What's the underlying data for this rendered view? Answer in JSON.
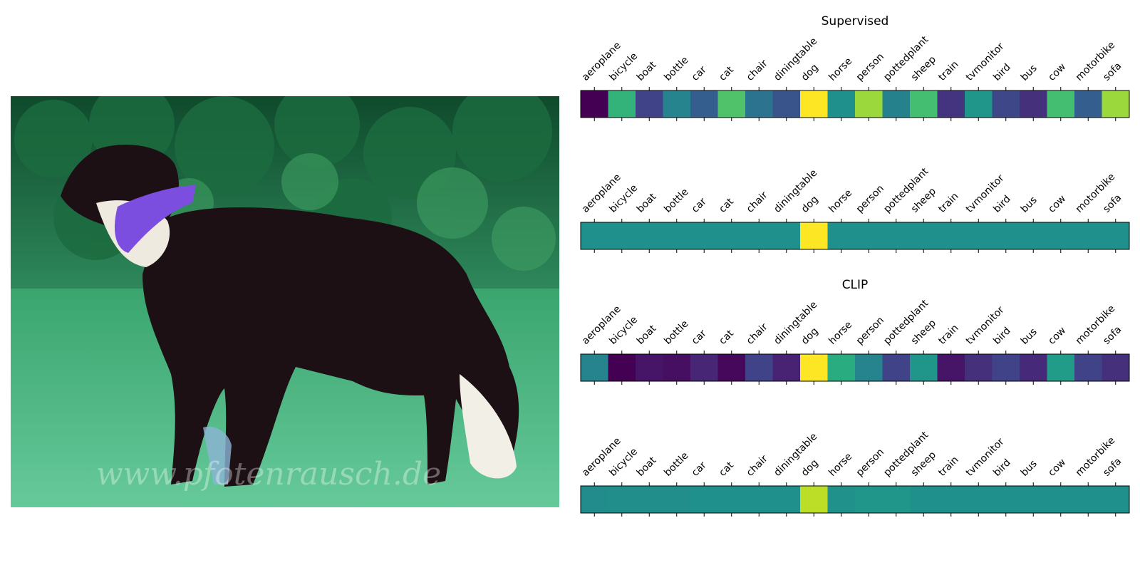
{
  "categories": [
    "aeroplane",
    "bicycle",
    "boat",
    "bottle",
    "car",
    "cat",
    "chair",
    "diningtable",
    "dog",
    "horse",
    "person",
    "pottedplant",
    "sheep",
    "train",
    "tvmonitor",
    "bird",
    "bus",
    "cow",
    "motorbike",
    "sofa"
  ],
  "colormap": "viridis",
  "photo": {
    "icon": "dog-photo",
    "watermark": "www.pfotenrausch.de"
  },
  "chart_data": [
    {
      "type": "heatmap",
      "title": "Supervised",
      "row": 0,
      "colorscale": "viridis",
      "values": [
        0.0,
        0.65,
        0.2,
        0.45,
        0.3,
        0.72,
        0.38,
        0.26,
        1.0,
        0.5,
        0.85,
        0.44,
        0.7,
        0.15,
        0.52,
        0.22,
        0.14,
        0.7,
        0.3,
        0.85
      ]
    },
    {
      "type": "heatmap",
      "title": "",
      "row": 1,
      "colorscale": "viridis",
      "values": [
        0.5,
        0.5,
        0.5,
        0.5,
        0.5,
        0.5,
        0.5,
        0.5,
        1.0,
        0.5,
        0.5,
        0.5,
        0.5,
        0.5,
        0.5,
        0.5,
        0.5,
        0.5,
        0.5,
        0.5
      ]
    },
    {
      "type": "heatmap",
      "title": "CLIP",
      "row": 2,
      "colorscale": "viridis",
      "values": [
        0.45,
        0.0,
        0.06,
        0.04,
        0.11,
        0.02,
        0.2,
        0.1,
        1.0,
        0.62,
        0.45,
        0.2,
        0.52,
        0.06,
        0.14,
        0.2,
        0.12,
        0.55,
        0.2,
        0.14
      ]
    },
    {
      "type": "heatmap",
      "title": "",
      "row": 3,
      "colorscale": "viridis",
      "values": [
        0.48,
        0.49,
        0.49,
        0.49,
        0.5,
        0.5,
        0.5,
        0.5,
        0.9,
        0.51,
        0.52,
        0.52,
        0.5,
        0.5,
        0.5,
        0.5,
        0.5,
        0.5,
        0.5,
        0.5
      ]
    }
  ]
}
